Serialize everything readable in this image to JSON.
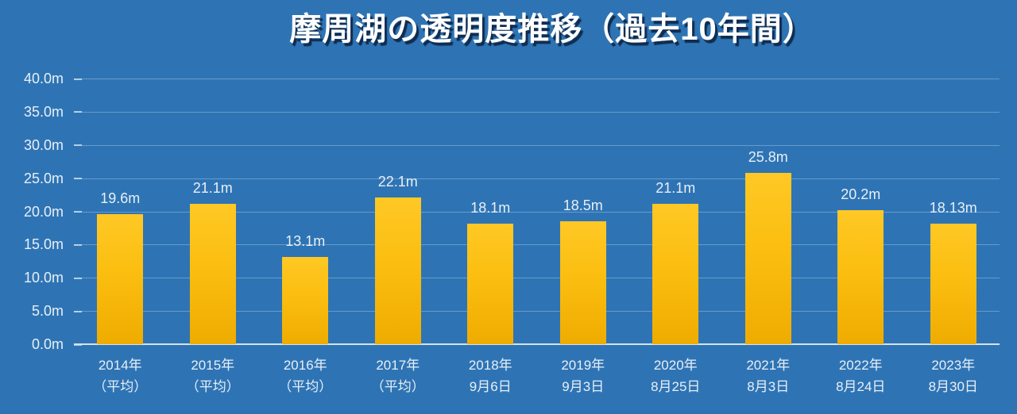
{
  "chart_data": {
    "type": "bar",
    "title": "摩周湖の透明度推移（過去10年間）",
    "xlabel": "",
    "ylabel": "",
    "unit": "m",
    "ylim": [
      0,
      40
    ],
    "grid": true,
    "legend_position": "none",
    "categories": [
      {
        "line1": "2014年",
        "line2": "（平均）"
      },
      {
        "line1": "2015年",
        "line2": "（平均）"
      },
      {
        "line1": "2016年",
        "line2": "（平均）"
      },
      {
        "line1": "2017年",
        "line2": "（平均）"
      },
      {
        "line1": "2018年",
        "line2": "9月6日"
      },
      {
        "line1": "2019年",
        "line2": "9月3日"
      },
      {
        "line1": "2020年",
        "line2": "8月25日"
      },
      {
        "line1": "2021年",
        "line2": "8月3日"
      },
      {
        "line1": "2022年",
        "line2": "8月24日"
      },
      {
        "line1": "2023年",
        "line2": "8月30日"
      }
    ],
    "values": [
      19.6,
      21.1,
      13.1,
      22.1,
      18.1,
      18.5,
      21.1,
      25.8,
      20.2,
      18.13
    ],
    "value_labels": [
      "19.6m",
      "21.1m",
      "13.1m",
      "22.1m",
      "18.1m",
      "18.5m",
      "21.1m",
      "25.8m",
      "20.2m",
      "18.13m"
    ],
    "yticks": [
      {
        "value": 0,
        "label": "0.0m"
      },
      {
        "value": 5,
        "label": "5.0m"
      },
      {
        "value": 10,
        "label": "10.0m"
      },
      {
        "value": 15,
        "label": "15.0m"
      },
      {
        "value": 20,
        "label": "20.0m"
      },
      {
        "value": 25,
        "label": "25.0m"
      },
      {
        "value": 30,
        "label": "30.0m"
      },
      {
        "value": 35,
        "label": "35.0m"
      },
      {
        "value": 40,
        "label": "40.0m"
      }
    ]
  },
  "colors": {
    "background": "#2E74B5",
    "bar_gradient_top": "#FFC825",
    "bar_gradient_mid": "#FBBE10",
    "bar_gradient_bottom": "#EFAC00",
    "grid_line": "rgba(255,255,255,0.28)",
    "tick_mark": "rgba(255,255,255,0.6)",
    "axis_line": "#D9E1EA",
    "text": "#E9EFF5",
    "title_text": "#FFFFFF",
    "title_shadow": "rgba(12,32,61,0.85)"
  }
}
